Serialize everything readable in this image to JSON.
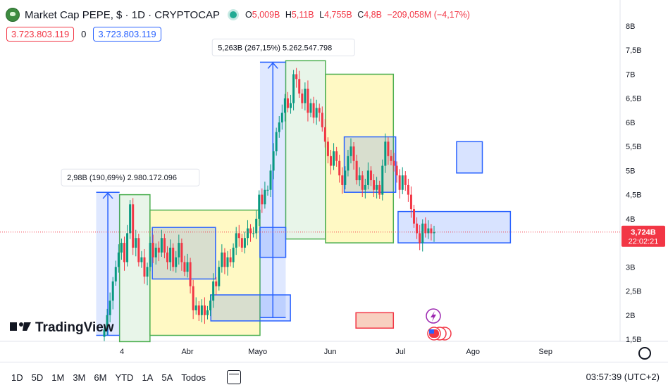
{
  "header": {
    "title": "Market Cap PEPE, $ · 1D · CRYPTOCAP",
    "ohlc": [
      {
        "label": "O",
        "value": "5,009B"
      },
      {
        "label": "H",
        "value": "5,11B"
      },
      {
        "label": "L",
        "value": "4,755B"
      },
      {
        "label": "C",
        "value": "4,8B"
      }
    ],
    "change": "−209,058M (−4,17%)"
  },
  "order_bar": {
    "sell_price": "3.723.803.119",
    "spread": "0",
    "buy_price": "3.723.803.119"
  },
  "watermark": "TradingView",
  "price_badge": {
    "value": "3,724B",
    "countdown": "22:02:21"
  },
  "measure_labels": [
    "2,98B (190,69%) 2.980.172.096",
    "5,263B (267,15%) 5.262.547.798"
  ],
  "timeframes": [
    "1D",
    "5D",
    "1M",
    "3M",
    "6M",
    "YTD",
    "1A",
    "5A",
    "Todos"
  ],
  "clock": "03:57:39 (UTC+2)",
  "colors": {
    "up": "#089981",
    "down": "#f23645",
    "blue": "#2962ff",
    "green": "#4caf50",
    "yellow_fill": "#fff9c4",
    "green_fill": "#e8f5e9",
    "blue_fill": "#dbe4ff",
    "red_fill": "#f8d0c0"
  },
  "chart_data": {
    "type": "candlestick",
    "y_unit": "B USD",
    "ylim": [
      1.5,
      8.0
    ],
    "y_ticks": [
      1.5,
      2,
      2.5,
      3,
      3.5,
      4,
      4.5,
      5,
      5.5,
      6,
      6.5,
      7,
      7.5,
      8
    ],
    "y_tick_labels": [
      "1,5B",
      "2B",
      "2,5B",
      "3B",
      "3,5B",
      "4B",
      "4,5B",
      "5B",
      "5,5B",
      "6B",
      "6,5B",
      "7B",
      "7,5B",
      "8B"
    ],
    "x_ticks": [
      {
        "date": "2024-03-04",
        "label": "4"
      },
      {
        "date": "2024-04-01",
        "label": "Abr"
      },
      {
        "date": "2024-05-01",
        "label": "Mayo"
      },
      {
        "date": "2024-06-01",
        "label": "Jun"
      },
      {
        "date": "2024-07-01",
        "label": "Jul"
      },
      {
        "date": "2024-08-01",
        "label": "Ago"
      },
      {
        "date": "2024-09-01",
        "label": "Sep"
      }
    ],
    "last_price": 3.724,
    "closes": [
      1.7,
      2.0,
      2.3,
      2.7,
      3.0,
      3.3,
      3.5,
      3.1,
      3.7,
      4.3,
      3.4,
      3.6,
      3.1,
      3.2,
      2.8,
      3.0,
      3.5,
      3.2,
      3.4,
      3.3,
      3.6,
      3.3,
      3.1,
      3.4,
      3.0,
      3.2,
      3.5,
      3.1,
      2.9,
      3.1,
      2.6,
      2.1,
      2.2,
      2.0,
      2.2,
      2.0,
      2.1,
      2.3,
      2.7,
      2.6,
      3.0,
      3.3,
      3.0,
      3.2,
      3.1,
      3.4,
      3.7,
      3.6,
      3.4,
      3.6,
      3.8,
      3.7,
      3.7,
      4.0,
      4.5,
      4.3,
      4.6,
      4.6,
      5.0,
      5.4,
      5.8,
      6.0,
      6.2,
      6.5,
      6.3,
      6.4,
      7.0,
      6.9,
      6.6,
      6.4,
      6.7,
      6.2,
      6.4,
      6.1,
      6.3,
      6.2,
      5.9,
      5.6,
      5.3,
      5.1,
      5.4,
      5.2,
      4.9,
      4.7,
      5.0,
      5.3,
      5.5,
      5.2,
      4.8,
      4.9,
      4.6,
      4.7,
      5.0,
      4.8,
      4.6,
      4.7,
      4.5,
      5.1,
      5.6,
      5.3,
      5.2,
      5.1,
      4.9,
      4.6,
      4.9,
      4.7,
      4.5,
      4.2,
      3.9,
      3.7,
      3.5,
      3.9,
      3.7,
      3.8,
      3.7,
      3.724
    ]
  },
  "zones": [
    {
      "kind": "green",
      "from": "2024-03-03",
      "to": "2024-03-16",
      "low": 1.45,
      "high": 4.5
    },
    {
      "kind": "yellow",
      "from": "2024-03-16",
      "to": "2024-05-02",
      "low": 1.58,
      "high": 4.18
    },
    {
      "kind": "green",
      "from": "2024-05-13",
      "to": "2024-05-30",
      "low": 3.58,
      "high": 7.28
    },
    {
      "kind": "yellow",
      "from": "2024-05-30",
      "to": "2024-06-28",
      "low": 3.5,
      "high": 7.0
    },
    {
      "kind": "blue",
      "from": "2024-03-17",
      "to": "2024-04-13",
      "low": 2.75,
      "high": 3.82
    },
    {
      "kind": "blue",
      "from": "2024-04-11",
      "to": "2024-05-15",
      "low": 1.88,
      "high": 2.42
    },
    {
      "kind": "blue",
      "from": "2024-05-02",
      "to": "2024-05-13",
      "low": 3.2,
      "high": 3.82
    },
    {
      "kind": "blue",
      "from": "2024-06-07",
      "to": "2024-06-29",
      "low": 4.55,
      "high": 5.7
    },
    {
      "kind": "blue",
      "from": "2024-06-30",
      "to": "2024-08-17",
      "low": 3.5,
      "high": 4.15
    },
    {
      "kind": "blue",
      "from": "2024-07-25",
      "to": "2024-08-05",
      "low": 4.95,
      "high": 5.6
    },
    {
      "kind": "red",
      "from": "2024-06-12",
      "to": "2024-06-28",
      "low": 1.73,
      "high": 2.05
    }
  ],
  "measures": [
    {
      "from": "2024-02-22",
      "to": "2024-03-03",
      "low": 1.58,
      "high": 4.55
    },
    {
      "from": "2024-05-02",
      "to": "2024-05-13",
      "low": 1.95,
      "high": 7.25
    }
  ]
}
